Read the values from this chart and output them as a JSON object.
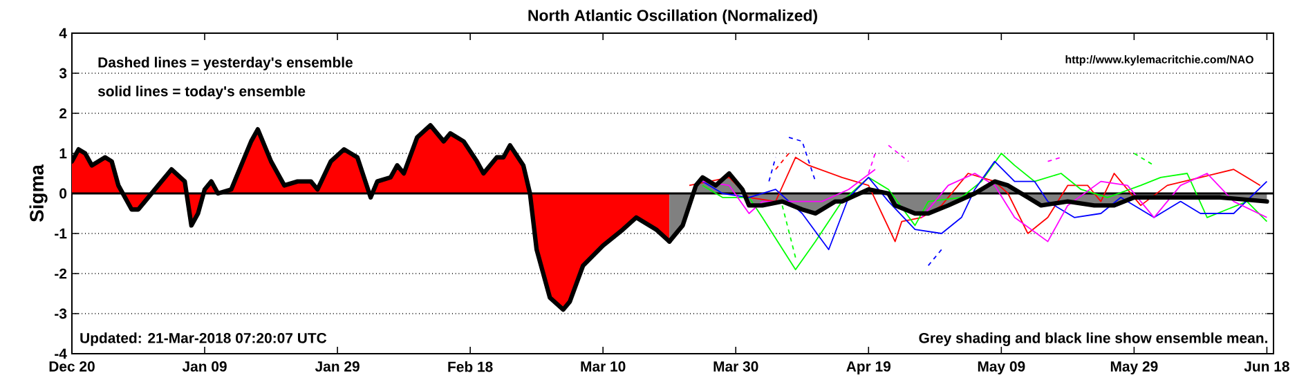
{
  "chart_data": {
    "type": "line",
    "title": "North Atlantic Oscillation (Normalized)",
    "ylabel": "Sigma",
    "annotations": [
      "Dashed lines = yesterday's ensemble",
      "solid lines = today's ensemble",
      "http://www.kylemacritchie.com/NAO",
      "Updated: 21-Mar-2018 07:20:07 UTC",
      "Grey shading and black line show ensemble mean."
    ],
    "xlim": [
      "2017-12-20",
      "2018-06-19"
    ],
    "xticks": [
      {
        "value": "2017-12-20",
        "label": "Dec 20"
      },
      {
        "value": "2018-01-09",
        "label": "Jan 09"
      },
      {
        "value": "2018-01-29",
        "label": "Jan 29"
      },
      {
        "value": "2018-02-18",
        "label": "Feb 18"
      },
      {
        "value": "2018-03-10",
        "label": "Mar 10"
      },
      {
        "value": "2018-03-30",
        "label": "Mar 30"
      },
      {
        "value": "2018-04-19",
        "label": "Apr 19"
      },
      {
        "value": "2018-05-09",
        "label": "May 09"
      },
      {
        "value": "2018-05-29",
        "label": "May 29"
      },
      {
        "value": "2018-06-18",
        "label": "Jun 18"
      }
    ],
    "ylim": [
      -4,
      4
    ],
    "yticks": [
      -4,
      -3,
      -2,
      -1,
      0,
      1,
      2,
      3,
      4
    ],
    "grid": "y",
    "ref_lines": [
      {
        "axis": "y",
        "value": 0,
        "color": "#000000"
      }
    ],
    "series": [
      {
        "type": "area",
        "color": "#ff0000",
        "x": [
          "2017-12-20",
          "2017-12-21",
          "2017-12-22",
          "2017-12-23",
          "2017-12-25",
          "2017-12-26",
          "2017-12-27",
          "2017-12-29",
          "2017-12-30",
          "2017-12-31",
          "2018-01-02",
          "2018-01-04",
          "2018-01-06",
          "2018-01-07",
          "2018-01-08",
          "2018-01-09",
          "2018-01-10",
          "2018-01-11",
          "2018-01-13",
          "2018-01-14",
          "2018-01-16",
          "2018-01-17",
          "2018-01-19",
          "2018-01-21",
          "2018-01-23",
          "2018-01-25",
          "2018-01-26",
          "2018-01-28",
          "2018-01-30",
          "2018-02-01",
          "2018-02-03",
          "2018-02-04",
          "2018-02-06",
          "2018-02-07",
          "2018-02-08",
          "2018-02-10",
          "2018-02-12",
          "2018-02-14",
          "2018-02-15",
          "2018-02-17",
          "2018-02-19",
          "2018-02-20",
          "2018-02-22",
          "2018-02-23",
          "2018-02-24",
          "2018-02-26",
          "2018-02-27",
          "2018-02-28",
          "2018-03-02",
          "2018-03-04",
          "2018-03-05",
          "2018-03-07",
          "2018-03-10",
          "2018-03-13",
          "2018-03-15",
          "2018-03-18",
          "2018-03-20"
        ],
        "values": [
          0.8,
          1.1,
          1.0,
          0.7,
          0.9,
          0.8,
          0.2,
          -0.4,
          -0.4,
          -0.2,
          0.2,
          0.6,
          0.3,
          -0.8,
          -0.5,
          0.1,
          0.3,
          0.0,
          0.1,
          0.5,
          1.3,
          1.6,
          0.8,
          0.2,
          0.3,
          0.3,
          0.1,
          0.8,
          1.1,
          0.9,
          -0.1,
          0.3,
          0.4,
          0.7,
          0.5,
          1.4,
          1.7,
          1.3,
          1.5,
          1.3,
          0.8,
          0.5,
          0.9,
          0.9,
          1.2,
          0.7,
          0.0,
          -1.4,
          -2.6,
          -2.9,
          -2.7,
          -1.8,
          -1.3,
          -0.9,
          -0.6,
          -0.9,
          -1.2
        ]
      },
      {
        "type": "area",
        "color": "#808080",
        "x": [
          "2018-03-20",
          "2018-03-22",
          "2018-03-24",
          "2018-03-25",
          "2018-03-27",
          "2018-03-29",
          "2018-03-31",
          "2018-04-01",
          "2018-04-03",
          "2018-04-06",
          "2018-04-09",
          "2018-04-11",
          "2018-04-14",
          "2018-04-15",
          "2018-04-19",
          "2018-04-22",
          "2018-04-23",
          "2018-04-26",
          "2018-04-28",
          "2018-05-01",
          "2018-05-05",
          "2018-05-08",
          "2018-05-10",
          "2018-05-13",
          "2018-05-15",
          "2018-05-19",
          "2018-05-23",
          "2018-05-26",
          "2018-05-29",
          "2018-06-02",
          "2018-06-06",
          "2018-06-11",
          "2018-06-18"
        ],
        "values": [
          -1.2,
          -0.8,
          0.2,
          0.4,
          0.2,
          0.5,
          0.1,
          -0.3,
          -0.3,
          -0.2,
          -0.4,
          -0.5,
          -0.2,
          -0.2,
          0.1,
          0.0,
          -0.3,
          -0.5,
          -0.5,
          -0.3,
          0.0,
          0.3,
          0.2,
          -0.1,
          -0.3,
          -0.2,
          -0.3,
          -0.3,
          -0.1,
          -0.1,
          -0.1,
          -0.1,
          -0.2
        ]
      },
      {
        "color": "#ff0000",
        "x": [
          "2018-03-23",
          "2018-03-29",
          "2018-04-01",
          "2018-04-05",
          "2018-04-08",
          "2018-04-10",
          "2018-04-15",
          "2018-04-19",
          "2018-04-21",
          "2018-04-23",
          "2018-04-24",
          "2018-04-27",
          "2018-04-30",
          "2018-05-04",
          "2018-05-08",
          "2018-05-10",
          "2018-05-13",
          "2018-05-16",
          "2018-05-19",
          "2018-05-22",
          "2018-05-24",
          "2018-05-26",
          "2018-05-30",
          "2018-06-03",
          "2018-06-08",
          "2018-06-13",
          "2018-06-17"
        ],
        "values": [
          0.2,
          0.4,
          -0.1,
          -0.2,
          0.9,
          0.7,
          0.4,
          0.2,
          -0.5,
          -1.2,
          -0.7,
          -0.6,
          -0.3,
          0.5,
          0.3,
          0.0,
          -1.0,
          -0.6,
          0.2,
          0.2,
          -0.2,
          0.5,
          -0.3,
          0.2,
          0.4,
          0.6,
          0.2
        ]
      },
      {
        "color": "#00ff00",
        "x": [
          "2018-03-25",
          "2018-03-28",
          "2018-04-01",
          "2018-04-03",
          "2018-04-08",
          "2018-04-11",
          "2018-04-15",
          "2018-04-19",
          "2018-04-22",
          "2018-04-26",
          "2018-04-28",
          "2018-05-03",
          "2018-05-06",
          "2018-05-09",
          "2018-05-11",
          "2018-05-14",
          "2018-05-18",
          "2018-05-21",
          "2018-05-25",
          "2018-05-30",
          "2018-06-02",
          "2018-06-06",
          "2018-06-09",
          "2018-06-15",
          "2018-06-18"
        ],
        "values": [
          0.2,
          -0.1,
          -0.1,
          -0.6,
          -1.9,
          -1.2,
          -0.2,
          0.4,
          0.1,
          -0.8,
          -0.2,
          -0.1,
          0.3,
          1.0,
          0.7,
          0.3,
          0.5,
          0.1,
          -0.1,
          0.2,
          0.4,
          0.5,
          -0.6,
          -0.2,
          -0.7
        ]
      },
      {
        "color": "#0000ff",
        "x": [
          "2018-03-25",
          "2018-03-28",
          "2018-04-01",
          "2018-04-05",
          "2018-04-09",
          "2018-04-13",
          "2018-04-16",
          "2018-04-19",
          "2018-04-22",
          "2018-04-26",
          "2018-04-30",
          "2018-05-03",
          "2018-05-05",
          "2018-05-08",
          "2018-05-11",
          "2018-05-14",
          "2018-05-16",
          "2018-05-20",
          "2018-05-24",
          "2018-05-27",
          "2018-06-01",
          "2018-06-05",
          "2018-06-08",
          "2018-06-13",
          "2018-06-18"
        ],
        "values": [
          0.3,
          0.0,
          -0.1,
          0.1,
          -0.5,
          -1.4,
          -0.1,
          0.4,
          -0.2,
          -0.9,
          -1.0,
          -0.6,
          0.1,
          0.8,
          0.3,
          0.3,
          -0.2,
          -0.6,
          -0.5,
          -0.1,
          -0.6,
          -0.2,
          -0.5,
          -0.5,
          0.3
        ]
      },
      {
        "color": "#ff00ff",
        "x": [
          "2018-03-25",
          "2018-03-29",
          "2018-04-01",
          "2018-04-03",
          "2018-04-08",
          "2018-04-12",
          "2018-04-16",
          "2018-04-20",
          "2018-04-23",
          "2018-04-27",
          "2018-05-01",
          "2018-05-05",
          "2018-05-08",
          "2018-05-11",
          "2018-05-16",
          "2018-05-19",
          "2018-05-24",
          "2018-05-28",
          "2018-06-01",
          "2018-06-05",
          "2018-06-09",
          "2018-06-13",
          "2018-06-18"
        ],
        "values": [
          0.3,
          0.2,
          -0.5,
          -0.2,
          -0.2,
          -0.2,
          0.1,
          0.6,
          null,
          -0.6,
          0.2,
          0.5,
          0.2,
          -0.6,
          -1.2,
          -0.3,
          0.3,
          0.2,
          -0.6,
          0.2,
          0.5,
          -0.2,
          -0.6
        ]
      },
      {
        "color": "#0000ff",
        "line_style": "dashed",
        "x": [
          "2018-04-04",
          "2018-04-05",
          "2018-04-06",
          "2018-04-07",
          "2018-04-09",
          "2018-04-11",
          "2018-04-27",
          "2018-04-28",
          "2018-04-30"
        ],
        "values": [
          0.3,
          0.9,
          null,
          1.4,
          1.3,
          0.3,
          null,
          -1.8,
          -1.4
        ]
      },
      {
        "color": "#ff00ff",
        "line_style": "dashed",
        "x": [
          "2018-04-19",
          "2018-04-20",
          "2018-04-21",
          "2018-04-22",
          "2018-04-25",
          "2018-05-10",
          "2018-05-16",
          "2018-05-18"
        ],
        "values": [
          0.5,
          1.0,
          null,
          1.2,
          0.8,
          null,
          0.8,
          0.9
        ]
      },
      {
        "color": "#00ff00",
        "line_style": "dashed",
        "x": [
          "2018-04-06",
          "2018-04-08",
          "2018-05-01",
          "2018-05-29",
          "2018-06-01"
        ],
        "values": [
          -0.3,
          -1.6,
          null,
          1.0,
          0.7
        ]
      },
      {
        "color": "#ff0000",
        "line_style": "dashed",
        "x": [
          "2018-04-05",
          "2018-04-07"
        ],
        "values": [
          0.6,
          1.0
        ]
      }
    ]
  }
}
